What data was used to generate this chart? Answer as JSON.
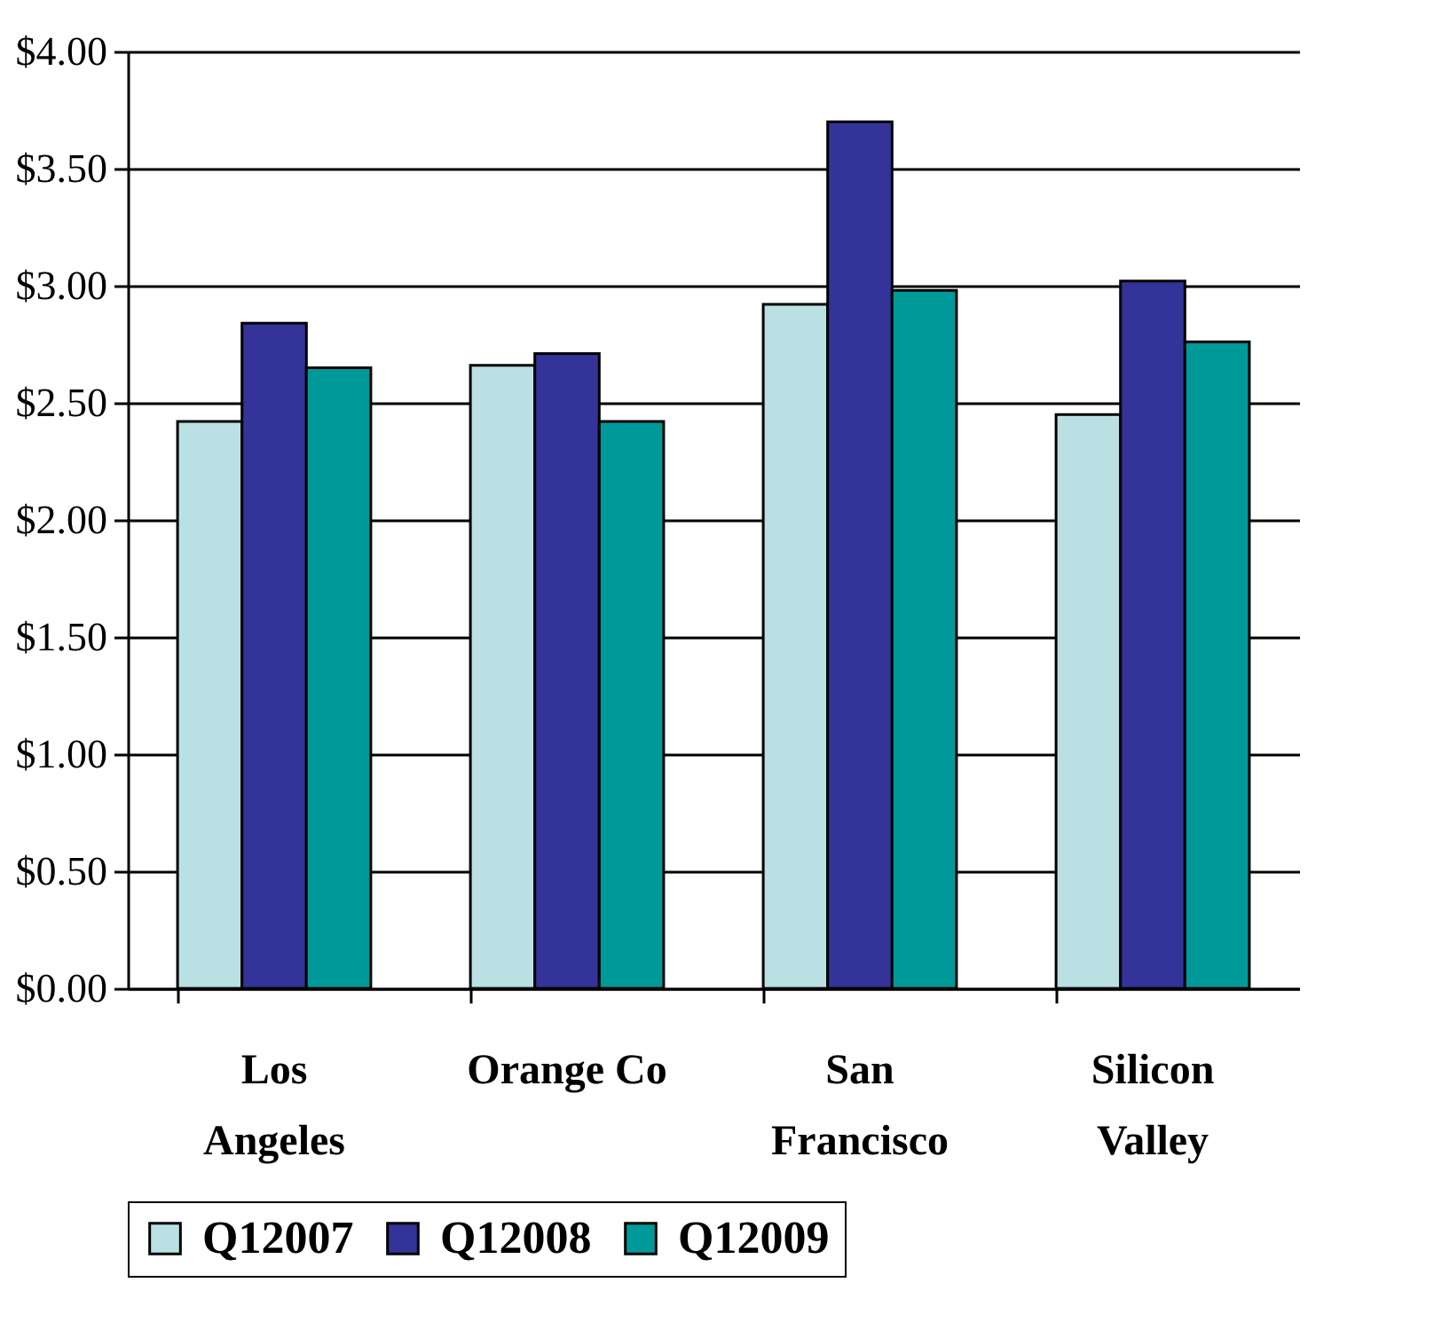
{
  "chart_data": {
    "type": "bar",
    "categories": [
      "Los Angeles",
      "Orange Co",
      "San Francisco",
      "Silicon Valley"
    ],
    "series": [
      {
        "name": "Q12007",
        "color": "#bbe0e3",
        "values": [
          2.42,
          2.66,
          2.92,
          2.45
        ]
      },
      {
        "name": "Q12008",
        "color": "#333399",
        "values": [
          2.84,
          2.71,
          3.7,
          3.02
        ]
      },
      {
        "name": "Q12009",
        "color": "#009999",
        "values": [
          2.65,
          2.42,
          2.98,
          2.76
        ]
      }
    ],
    "ylim": [
      0,
      4
    ],
    "yticks": [
      {
        "value": 0,
        "label": "$0.00"
      },
      {
        "value": 0.5,
        "label": "$0.50"
      },
      {
        "value": 1,
        "label": "$1.00"
      },
      {
        "value": 1.5,
        "label": "$1.50"
      },
      {
        "value": 2,
        "label": "$2.00"
      },
      {
        "value": 2.5,
        "label": "$2.50"
      },
      {
        "value": 3,
        "label": "$3.00"
      },
      {
        "value": 3.5,
        "label": "$3.50"
      },
      {
        "value": 4,
        "label": "$4.00"
      }
    ],
    "grid": "y",
    "legend": "bottom"
  }
}
